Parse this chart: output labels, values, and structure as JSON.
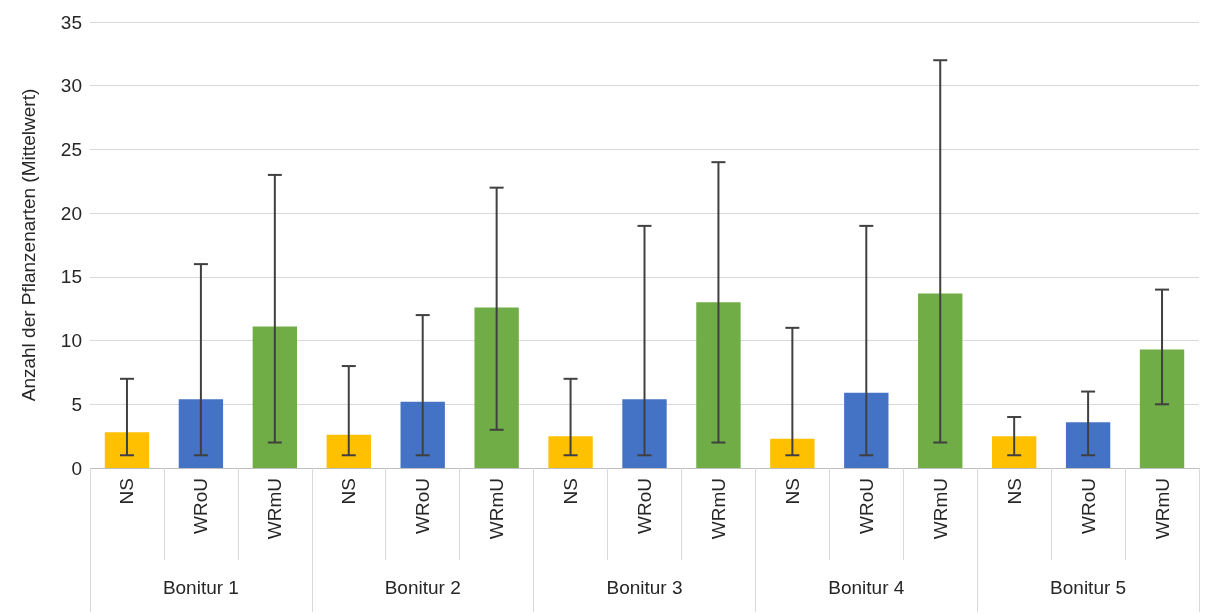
{
  "chart_data": {
    "type": "bar",
    "ylabel": "Anzahl der Pflanzenarten (Mittelwert)",
    "categories": [
      "Bonitur 1",
      "Bonitur 2",
      "Bonitur 3",
      "Bonitur 4",
      "Bonitur 5"
    ],
    "series": [
      {
        "name": "NS",
        "color": "#ffc000",
        "values": [
          2.8,
          2.6,
          2.5,
          2.3,
          2.5
        ],
        "errors": [
          [
            1,
            7
          ],
          [
            1,
            8
          ],
          [
            1,
            7
          ],
          [
            1,
            11
          ],
          [
            1,
            4
          ]
        ]
      },
      {
        "name": "WRoU",
        "color": "#4472c4",
        "values": [
          5.4,
          5.2,
          5.4,
          5.9,
          3.6
        ],
        "errors": [
          [
            1,
            16
          ],
          [
            1,
            12
          ],
          [
            1,
            19
          ],
          [
            1,
            19
          ],
          [
            1,
            6
          ]
        ]
      },
      {
        "name": "WRmU",
        "color": "#70ad47",
        "values": [
          11.1,
          12.6,
          13.0,
          13.7,
          9.3
        ],
        "errors": [
          [
            2,
            23
          ],
          [
            3,
            22
          ],
          [
            2,
            24
          ],
          [
            2,
            32
          ],
          [
            5,
            14
          ]
        ]
      }
    ],
    "ylim": [
      0,
      35
    ],
    "yticks": [
      0,
      5,
      10,
      15,
      20,
      25,
      30,
      35
    ],
    "grid": "y",
    "legend": false
  }
}
